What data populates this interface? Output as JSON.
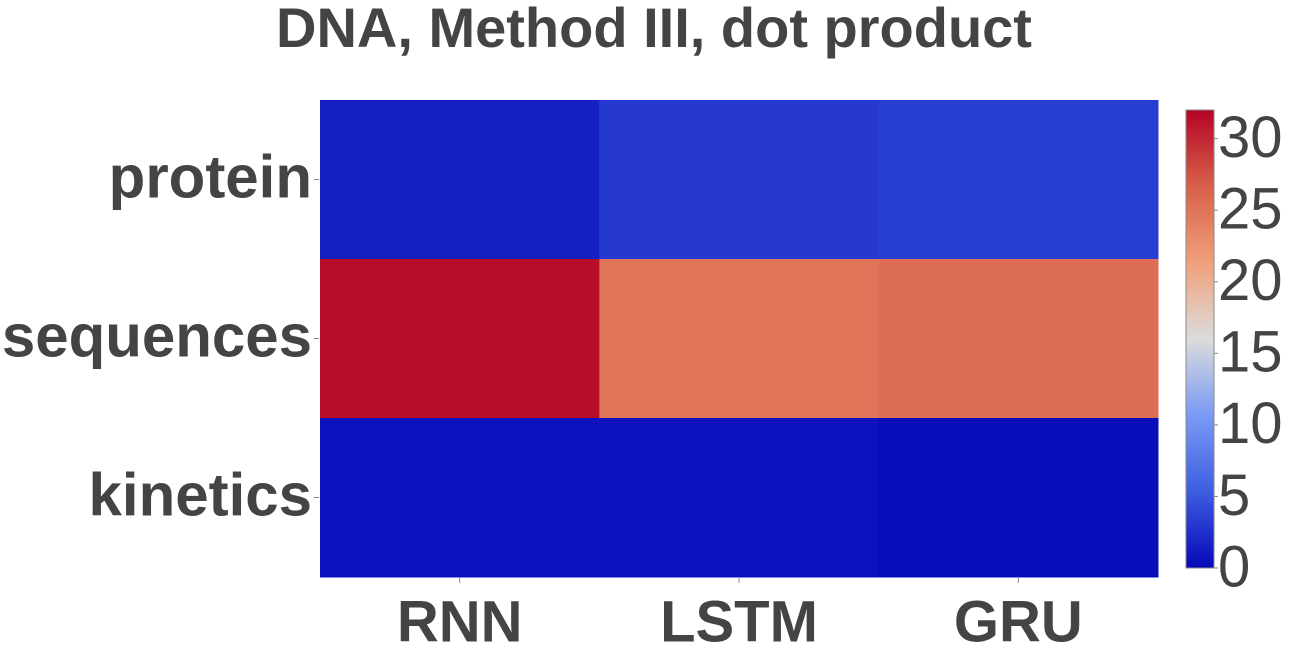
{
  "chart_data": {
    "type": "heatmap",
    "title": "DNA, Method III, dot product",
    "categories": [
      "RNN",
      "LSTM",
      "GRU"
    ],
    "rows": [
      "protein",
      "sequences",
      "kinetics"
    ],
    "z": [
      [
        1.5,
        3,
        3.3
      ],
      [
        31.5,
        25,
        25.5
      ],
      [
        0.6,
        0.6,
        0.3
      ]
    ],
    "zlim": [
      0,
      32
    ],
    "zticks": [
      0,
      5,
      10,
      15,
      20,
      25,
      30
    ],
    "colorscale": [
      "#0508b8",
      "#3e5de0",
      "#7a9bf5",
      "#dcdcdc",
      "#f0a07a",
      "#d8604a",
      "#b40426"
    ]
  }
}
